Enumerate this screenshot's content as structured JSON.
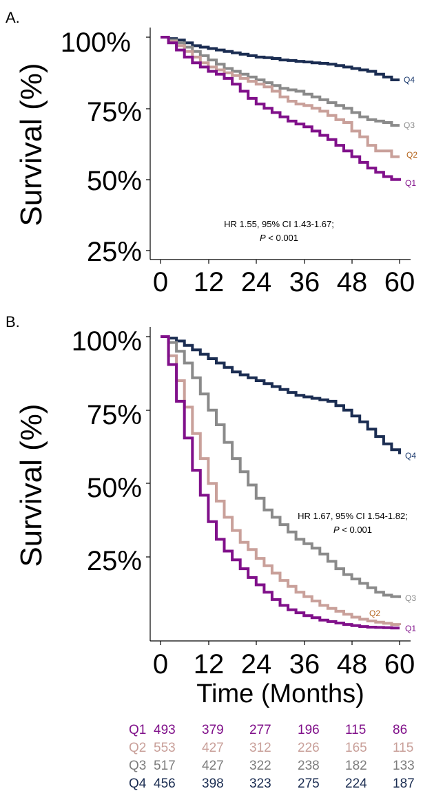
{
  "chart_data": [
    {
      "type": "line",
      "panel_label": "A.",
      "ylabel": "Survival (%)",
      "xlabel": "",
      "x_ticks": [
        "0",
        "12",
        "24",
        "36",
        "48",
        "60"
      ],
      "y_ticks": [
        "25%",
        "50%",
        "75%",
        "100%"
      ],
      "xlim": [
        0,
        60
      ],
      "ylim": [
        22,
        103
      ],
      "grid": false,
      "annotation": {
        "line1": "HR 1.55, 95% CI 1.43-1.67;",
        "p_label": "P",
        "p_rest": " < 0.001"
      },
      "series": [
        {
          "name": "Q4",
          "color": "#1b2d52",
          "x": [
            0,
            2,
            4,
            6,
            8,
            10,
            12,
            14,
            16,
            18,
            20,
            22,
            24,
            26,
            28,
            30,
            32,
            34,
            36,
            38,
            40,
            42,
            44,
            46,
            48,
            50,
            52,
            54,
            56,
            58,
            60
          ],
          "y": [
            100,
            99.5,
            99,
            98,
            97,
            96.5,
            96,
            95.5,
            95,
            94.5,
            94,
            93.5,
            93,
            92.8,
            92.5,
            92,
            91.8,
            91.5,
            91.3,
            91,
            90.8,
            90.5,
            90,
            89.5,
            89,
            88.5,
            88,
            87,
            86,
            85,
            85
          ]
        },
        {
          "name": "Q3",
          "color": "#8a8a8a",
          "x": [
            0,
            2,
            4,
            6,
            8,
            10,
            12,
            14,
            16,
            18,
            20,
            22,
            24,
            26,
            28,
            30,
            32,
            34,
            36,
            38,
            40,
            42,
            44,
            46,
            48,
            50,
            52,
            54,
            56,
            58,
            60
          ],
          "y": [
            100,
            99,
            98,
            96.5,
            95,
            93.5,
            92,
            90.5,
            89,
            88,
            87,
            86,
            85,
            84,
            83,
            82,
            81.5,
            81,
            80,
            79,
            78,
            77,
            76,
            75,
            73.5,
            72,
            71,
            70.5,
            70,
            69,
            69
          ]
        },
        {
          "name": "Q2",
          "color": "#c9a09a",
          "x": [
            0,
            2,
            4,
            6,
            8,
            10,
            12,
            14,
            16,
            18,
            20,
            22,
            24,
            26,
            28,
            30,
            32,
            34,
            36,
            38,
            40,
            42,
            44,
            46,
            48,
            50,
            52,
            54,
            56,
            58,
            60
          ],
          "y": [
            100,
            98.5,
            97,
            95,
            93,
            91,
            89.5,
            88.5,
            87.5,
            86.5,
            85.5,
            84.5,
            83.5,
            82.5,
            81,
            79,
            77.5,
            76.5,
            76,
            75,
            74,
            72.5,
            71,
            70,
            67,
            65,
            62,
            60,
            60,
            58,
            58
          ]
        },
        {
          "name": "Q1",
          "color": "#80108a",
          "x": [
            0,
            2,
            4,
            6,
            8,
            10,
            12,
            14,
            16,
            18,
            20,
            22,
            24,
            26,
            28,
            30,
            32,
            34,
            36,
            38,
            40,
            42,
            44,
            46,
            48,
            50,
            52,
            54,
            56,
            58,
            60
          ],
          "y": [
            100,
            98,
            95.5,
            93,
            91,
            89.5,
            88,
            87,
            85.5,
            83.5,
            81,
            78.5,
            76.5,
            75,
            73.5,
            72,
            70.5,
            69.5,
            68.5,
            67,
            65.5,
            64,
            62,
            60,
            58,
            56,
            54,
            52.5,
            51,
            50,
            49.5
          ]
        }
      ]
    },
    {
      "type": "line",
      "panel_label": "B.",
      "ylabel": "Survival (%)",
      "xlabel": "Time (Months)",
      "x_ticks": [
        "0",
        "12",
        "24",
        "36",
        "48",
        "60"
      ],
      "y_ticks": [
        "25%",
        "50%",
        "75%",
        "100%"
      ],
      "xlim": [
        0,
        60
      ],
      "ylim": [
        -2,
        103
      ],
      "grid": false,
      "annotation": {
        "line1": "HR 1.67, 95% CI 1.54-1.82;",
        "p_label": "P",
        "p_rest": " < 0.001"
      },
      "series": [
        {
          "name": "Q4",
          "color": "#1b2d52",
          "x": [
            0,
            2,
            4,
            6,
            8,
            10,
            12,
            14,
            16,
            18,
            20,
            22,
            24,
            26,
            28,
            30,
            32,
            34,
            36,
            38,
            40,
            42,
            44,
            46,
            48,
            50,
            52,
            54,
            56,
            58,
            60
          ],
          "y": [
            100,
            99.5,
            98.5,
            97,
            95.5,
            94,
            92.5,
            91,
            89.5,
            88,
            87,
            86,
            85,
            84,
            83,
            82,
            81,
            80,
            79.5,
            79,
            78.5,
            78,
            76.5,
            75,
            73,
            71,
            68.5,
            66,
            63.5,
            61.5,
            60
          ]
        },
        {
          "name": "Q3",
          "color": "#8a8a8a",
          "x": [
            0,
            2,
            4,
            6,
            8,
            10,
            12,
            14,
            16,
            18,
            20,
            22,
            24,
            26,
            28,
            30,
            32,
            34,
            36,
            38,
            40,
            42,
            44,
            46,
            48,
            50,
            52,
            54,
            56,
            58,
            60
          ],
          "y": [
            100,
            98,
            95,
            91,
            86,
            80.5,
            75,
            70,
            64,
            58.5,
            54,
            49.5,
            45,
            41,
            38.5,
            36,
            33.5,
            31,
            29.5,
            28,
            26,
            23.5,
            21,
            19,
            17.5,
            16,
            14.5,
            13,
            12,
            11.5,
            11
          ]
        },
        {
          "name": "Q2",
          "color": "#c9a09a",
          "x": [
            0,
            2,
            4,
            6,
            8,
            10,
            12,
            14,
            16,
            18,
            20,
            22,
            24,
            26,
            28,
            30,
            32,
            34,
            36,
            38,
            40,
            42,
            44,
            46,
            48,
            50,
            52,
            54,
            56,
            58,
            60
          ],
          "y": [
            100,
            93.5,
            85,
            76,
            67,
            58.5,
            50,
            44,
            38.5,
            34,
            30,
            27.5,
            24.5,
            22,
            19.5,
            17,
            15,
            13,
            11.5,
            10,
            8.5,
            7.5,
            6.5,
            5.5,
            4.5,
            3.8,
            3.2,
            2.8,
            2.4,
            2,
            1.8
          ]
        },
        {
          "name": "Q1",
          "color": "#80108a",
          "x": [
            0,
            2,
            4,
            6,
            8,
            10,
            12,
            14,
            16,
            18,
            20,
            22,
            24,
            26,
            28,
            30,
            32,
            34,
            36,
            38,
            40,
            42,
            44,
            46,
            48,
            50,
            52,
            54,
            56,
            58,
            60
          ],
          "y": [
            100,
            90.5,
            78,
            65.5,
            54.5,
            46,
            37,
            31,
            27,
            24,
            21,
            18,
            15.5,
            13,
            10.5,
            8.5,
            7,
            6,
            5,
            4.3,
            3.5,
            3,
            2.5,
            2,
            1.6,
            1.3,
            1.1,
            1,
            0.9,
            0.8,
            0.8
          ]
        }
      ]
    }
  ],
  "risk_table": {
    "times": [
      "0",
      "12",
      "24",
      "36",
      "48",
      "60"
    ],
    "rows": [
      {
        "group": "Q1",
        "color": "#80108a",
        "counts": [
          "493",
          "379",
          "277",
          "196",
          "115",
          "86"
        ]
      },
      {
        "group": "Q2",
        "color": "#c9a09a",
        "counts": [
          "553",
          "427",
          "312",
          "226",
          "165",
          "115"
        ]
      },
      {
        "group": "Q3",
        "color": "#8a8a8a",
        "counts": [
          "517",
          "427",
          "322",
          "238",
          "182",
          "133"
        ]
      },
      {
        "group": "Q4",
        "color": "#1b2d52",
        "counts": [
          "456",
          "398",
          "323",
          "275",
          "224",
          "187"
        ]
      }
    ]
  },
  "curve_label_colors": {
    "Q4": "#1b3a6e",
    "Q3": "#8a8a8a",
    "Q2": "#b5651d",
    "Q1": "#80108a"
  }
}
